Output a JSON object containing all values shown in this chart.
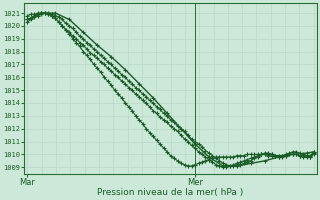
{
  "bg_color": "#cce8d8",
  "grid_color": "#b8d8c8",
  "line_color": "#1a5c28",
  "marker_color": "#1a5c28",
  "axis_color": "#2a6b38",
  "text_color": "#1a5c28",
  "ylabel_ticks": [
    1009,
    1010,
    1011,
    1012,
    1013,
    1014,
    1015,
    1016,
    1017,
    1018,
    1019,
    1020,
    1021
  ],
  "ylim": [
    1008.5,
    1021.8
  ],
  "xlabel": "Pression niveau de la mer( hPa )",
  "xtick_labels": [
    "Mar",
    "Mer"
  ],
  "xtick_positions": [
    0,
    48
  ],
  "xlim": [
    -1,
    83
  ],
  "vline_x": 48,
  "n_vgrid": 21,
  "series": [
    {
      "x": [
        0,
        1,
        2,
        3,
        4,
        5,
        6,
        7,
        8,
        9,
        10,
        11,
        12,
        13,
        14,
        15,
        16,
        17,
        18,
        19,
        20,
        21,
        22,
        23,
        24,
        25,
        26,
        27,
        28,
        29,
        30,
        31,
        32,
        33,
        34,
        35,
        36,
        37,
        38,
        39,
        40,
        41,
        42,
        43,
        44,
        45,
        46,
        47,
        48,
        49,
        50,
        51,
        52,
        53,
        54,
        55,
        56,
        57,
        58,
        59,
        60,
        61,
        62,
        63,
        64,
        65,
        66,
        67,
        68,
        69,
        70,
        71,
        72,
        73,
        74,
        75,
        76,
        77,
        78,
        79,
        80,
        81,
        82
      ],
      "y": [
        1020.3,
        1020.5,
        1020.7,
        1020.8,
        1020.9,
        1021.0,
        1021.0,
        1020.9,
        1020.8,
        1020.7,
        1020.5,
        1020.2,
        1020.0,
        1019.8,
        1019.5,
        1019.2,
        1019.0,
        1018.7,
        1018.5,
        1018.2,
        1018.0,
        1017.7,
        1017.5,
        1017.2,
        1017.0,
        1016.7,
        1016.5,
        1016.2,
        1016.0,
        1015.7,
        1015.5,
        1015.2,
        1015.0,
        1014.7,
        1014.5,
        1014.2,
        1014.0,
        1013.7,
        1013.5,
        1013.2,
        1013.0,
        1012.7,
        1012.5,
        1012.2,
        1012.0,
        1011.8,
        1011.5,
        1011.2,
        1011.0,
        1010.8,
        1010.6,
        1010.3,
        1010.1,
        1009.9,
        1009.7,
        1009.5,
        1009.3,
        1009.2,
        1009.1,
        1009.1,
        1009.2,
        1009.2,
        1009.3,
        1009.4,
        1009.5,
        1009.7,
        1009.8,
        1010.0,
        1010.1,
        1010.1,
        1010.0,
        1009.9,
        1009.9,
        1009.9,
        1010.0,
        1010.1,
        1010.2,
        1010.2,
        1010.1,
        1010.0,
        1009.9,
        1009.9,
        1010.2
      ]
    },
    {
      "x": [
        0,
        1,
        2,
        3,
        4,
        5,
        6,
        7,
        8,
        9,
        10,
        11,
        12,
        13,
        14,
        15,
        16,
        17,
        18,
        19,
        20,
        21,
        22,
        23,
        24,
        25,
        26,
        27,
        28,
        29,
        30,
        31,
        32,
        33,
        34,
        35,
        36,
        37,
        38,
        39,
        40,
        41,
        42,
        43,
        44,
        45,
        46,
        47,
        48,
        49,
        50,
        51,
        52,
        53,
        54,
        55,
        56,
        57,
        58,
        59,
        60,
        61,
        62,
        63,
        64,
        65,
        66,
        67,
        68,
        69,
        70,
        71,
        72,
        73,
        74,
        75,
        76,
        77,
        78,
        79,
        80,
        81,
        82
      ],
      "y": [
        1020.5,
        1020.6,
        1020.8,
        1020.9,
        1021.0,
        1021.0,
        1020.9,
        1020.8,
        1020.6,
        1020.3,
        1020.0,
        1019.7,
        1019.5,
        1019.2,
        1019.0,
        1018.7,
        1018.5,
        1018.2,
        1017.9,
        1017.7,
        1017.5,
        1017.2,
        1017.0,
        1016.7,
        1016.5,
        1016.2,
        1016.0,
        1015.7,
        1015.5,
        1015.2,
        1015.0,
        1014.7,
        1014.5,
        1014.2,
        1014.0,
        1013.7,
        1013.4,
        1013.2,
        1012.9,
        1012.7,
        1012.5,
        1012.2,
        1012.0,
        1011.8,
        1011.5,
        1011.2,
        1011.0,
        1010.7,
        1010.5,
        1010.2,
        1010.0,
        1009.8,
        1009.6,
        1009.4,
        1009.2,
        1009.1,
        1009.0,
        1009.0,
        1009.1,
        1009.2,
        1009.3,
        1009.4,
        1009.5,
        1009.6,
        1009.7,
        1009.8,
        1009.9,
        1010.0,
        1010.0,
        1010.0,
        1010.0,
        1009.9,
        1009.8,
        1009.8,
        1009.9,
        1010.0,
        1010.0,
        1010.0,
        1009.9,
        1009.8,
        1009.8,
        1009.8,
        1010.1
      ]
    },
    {
      "x": [
        0,
        1,
        2,
        3,
        4,
        5,
        6,
        7,
        8,
        9,
        10,
        11,
        12,
        13,
        14,
        15,
        16,
        17,
        18,
        19,
        20,
        21,
        22,
        23,
        24,
        25,
        26,
        27,
        28,
        29,
        30,
        31,
        32,
        33,
        34,
        35,
        36,
        37,
        38,
        39,
        40,
        41,
        42,
        43,
        44,
        45,
        46,
        47,
        48,
        49,
        50,
        51,
        52,
        53,
        54,
        55,
        56,
        57,
        58,
        59,
        60,
        61,
        62,
        63,
        64,
        65,
        66,
        67,
        68,
        69,
        70,
        71,
        72,
        73,
        74,
        75,
        76,
        77,
        78,
        79,
        80,
        81,
        82
      ],
      "y": [
        1020.8,
        1020.9,
        1020.9,
        1021.0,
        1021.0,
        1021.0,
        1020.9,
        1020.8,
        1020.6,
        1020.3,
        1020.0,
        1019.7,
        1019.4,
        1019.0,
        1018.7,
        1018.4,
        1018.0,
        1017.7,
        1017.4,
        1017.0,
        1016.7,
        1016.4,
        1016.0,
        1015.7,
        1015.4,
        1015.0,
        1014.7,
        1014.4,
        1014.0,
        1013.7,
        1013.4,
        1013.0,
        1012.7,
        1012.4,
        1012.0,
        1011.7,
        1011.4,
        1011.1,
        1010.8,
        1010.5,
        1010.2,
        1009.9,
        1009.7,
        1009.5,
        1009.3,
        1009.2,
        1009.1,
        1009.1,
        1009.2,
        1009.3,
        1009.4,
        1009.5,
        1009.6,
        1009.7,
        1009.8,
        1009.8,
        1009.8,
        1009.8,
        1009.8,
        1009.8,
        1009.9,
        1009.9,
        1009.9,
        1010.0,
        1010.0,
        1010.0,
        1010.0,
        1010.0,
        1010.0,
        1009.9,
        1009.9,
        1009.9,
        1009.9,
        1009.9,
        1009.9,
        1010.0,
        1010.0,
        1010.0,
        1009.9,
        1009.9,
        1009.9,
        1009.8,
        1010.0
      ]
    },
    {
      "x": [
        0,
        4,
        8,
        12,
        16,
        20,
        24,
        28,
        32,
        36,
        40,
        44,
        48,
        52,
        56,
        60,
        64,
        68,
        72,
        76,
        80,
        82
      ],
      "y": [
        1020.5,
        1021.0,
        1021.0,
        1020.5,
        1019.5,
        1018.5,
        1017.6,
        1016.6,
        1015.5,
        1014.4,
        1013.2,
        1012.0,
        1010.8,
        1009.8,
        1009.1,
        1009.1,
        1009.3,
        1009.5,
        1009.8,
        1010.0,
        1010.1,
        1010.2
      ]
    }
  ]
}
